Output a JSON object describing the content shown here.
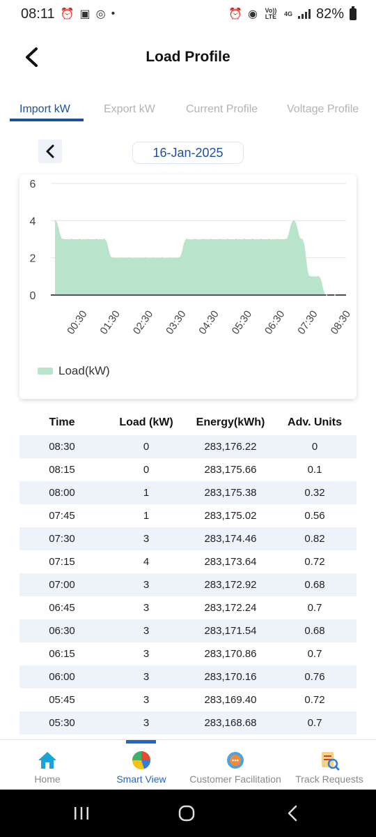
{
  "status_bar": {
    "time": "08:11",
    "battery": "82%",
    "network": "4G",
    "volte": "Vo)) LTE"
  },
  "header": {
    "title": "Load Profile"
  },
  "tabs": [
    {
      "label": "Import kW",
      "active": true
    },
    {
      "label": "Export kW",
      "active": false
    },
    {
      "label": "Current Profile",
      "active": false
    },
    {
      "label": "Voltage Profile",
      "active": false
    }
  ],
  "date_selector": {
    "date": "16-Jan-2025"
  },
  "chart_data": {
    "type": "area",
    "y_ticks": [
      "6",
      "4",
      "2",
      "0"
    ],
    "ylim": [
      0,
      6
    ],
    "x_ticks": [
      "00:30",
      "01:30",
      "02:30",
      "03:30",
      "04:30",
      "05:30",
      "06:30",
      "07:30",
      "08:30"
    ],
    "series": [
      {
        "name": "Load(kW)",
        "color": "#b9e4cc",
        "x": [
          "00:00",
          "00:15",
          "00:30",
          "00:45",
          "01:00",
          "01:15",
          "01:30",
          "01:45",
          "02:00",
          "02:15",
          "02:30",
          "02:45",
          "03:00",
          "03:15",
          "03:30",
          "03:45",
          "04:00",
          "04:15",
          "04:30",
          "04:45",
          "05:00",
          "05:15",
          "05:30",
          "05:45",
          "06:00",
          "06:15",
          "06:30",
          "06:45",
          "07:00",
          "07:15",
          "07:30",
          "07:45",
          "08:00",
          "08:15",
          "08:30"
        ],
        "values": [
          4,
          3,
          3,
          3,
          3,
          3,
          3,
          2,
          2,
          2,
          2,
          2,
          2,
          2,
          2,
          2,
          3,
          3,
          3,
          3,
          3,
          3,
          3,
          3,
          3,
          3,
          3,
          3,
          3,
          4,
          3,
          1,
          1,
          0,
          0
        ]
      }
    ],
    "legend": "bottom-left",
    "grid": true
  },
  "table": {
    "headers": [
      "Time",
      "Load (kW)",
      "Energy(kWh)",
      "Adv. Units"
    ],
    "rows": [
      [
        "08:30",
        "0",
        "283,176.22",
        "0"
      ],
      [
        "08:15",
        "0",
        "283,175.66",
        "0.1"
      ],
      [
        "08:00",
        "1",
        "283,175.38",
        "0.32"
      ],
      [
        "07:45",
        "1",
        "283,175.02",
        "0.56"
      ],
      [
        "07:30",
        "3",
        "283,174.46",
        "0.82"
      ],
      [
        "07:15",
        "4",
        "283,173.64",
        "0.72"
      ],
      [
        "07:00",
        "3",
        "283,172.92",
        "0.68"
      ],
      [
        "06:45",
        "3",
        "283,172.24",
        "0.7"
      ],
      [
        "06:30",
        "3",
        "283,171.54",
        "0.68"
      ],
      [
        "06:15",
        "3",
        "283,170.86",
        "0.7"
      ],
      [
        "06:00",
        "3",
        "283,170.16",
        "0.76"
      ],
      [
        "05:45",
        "3",
        "283,169.40",
        "0.72"
      ],
      [
        "05:30",
        "3",
        "283,168.68",
        "0.7"
      ]
    ]
  },
  "bottom_nav": [
    {
      "label": "Home",
      "icon": "home-icon",
      "active": false
    },
    {
      "label": "Smart View",
      "icon": "pie-chart-icon",
      "active": true
    },
    {
      "label": "Customer Facilitation",
      "icon": "support-icon",
      "active": false
    },
    {
      "label": "Track Requests",
      "icon": "track-requests-icon",
      "active": false
    }
  ],
  "colors": {
    "accent": "#1e4f9b",
    "nav_active": "#1e66c8",
    "area_fill": "#b9e4cc",
    "row_stripe": "#eef2f9"
  }
}
